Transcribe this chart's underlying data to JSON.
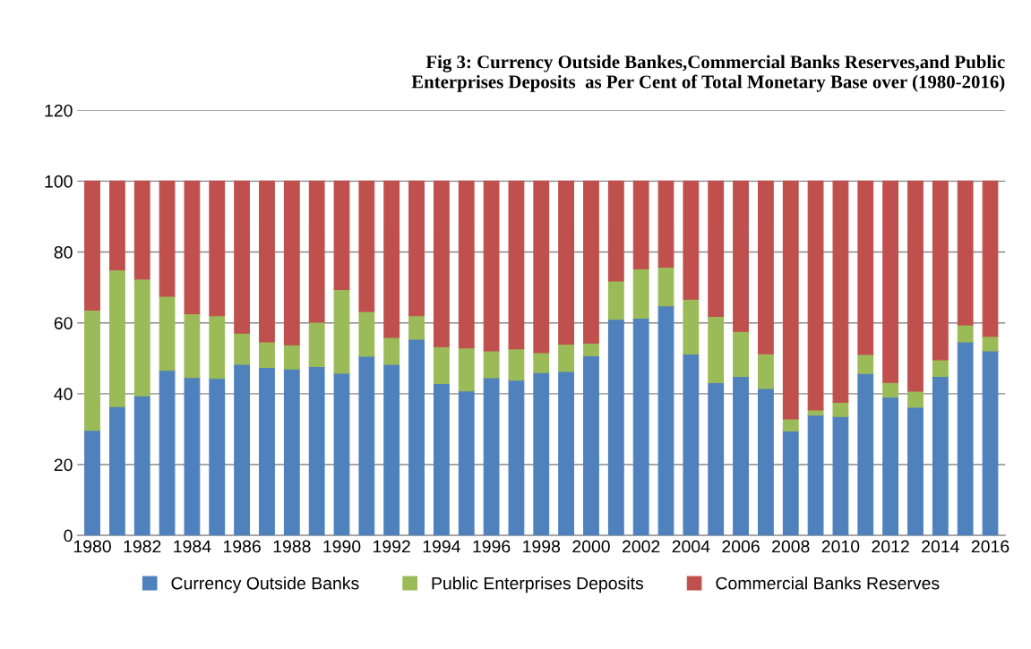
{
  "chart_data": {
    "type": "bar",
    "stacked": true,
    "title": "Fig 3: Currency Outside Bankes,Commercial Banks Reserves,and Public\nEnterprises Deposits  as Per Cent of Total Monetary Base over (1980-2016)",
    "categories": [
      "1980",
      null,
      "1982",
      null,
      "1984",
      null,
      "1986",
      null,
      "1988",
      null,
      "1990",
      null,
      "1992",
      null,
      "1994",
      null,
      "1996",
      null,
      "1998",
      null,
      "2000",
      null,
      "2002",
      null,
      "2004",
      null,
      "2006",
      null,
      "2008",
      null,
      "2010",
      null,
      "2012",
      null,
      "2014",
      null,
      "2016"
    ],
    "series": [
      {
        "name": "Currency Outside Banks",
        "color": "#4f81bd",
        "values": [
          29.7,
          36.4,
          39.4,
          46.6,
          44.6,
          44.3,
          48.3,
          47.4,
          47.0,
          47.7,
          45.8,
          50.6,
          48.3,
          55.4,
          42.9,
          40.8,
          44.5,
          43.8,
          46.0,
          46.3,
          50.7,
          61.0,
          61.3,
          64.8,
          51.2,
          43.1,
          44.9,
          41.5,
          29.5,
          34.0,
          33.6,
          45.7,
          39.0,
          36.2,
          44.9,
          54.6,
          52.1
        ]
      },
      {
        "name": "Public Enterprises Deposits",
        "color": "#9bbb59",
        "values": [
          33.9,
          38.6,
          33.0,
          20.9,
          18.0,
          17.7,
          8.8,
          7.2,
          6.8,
          12.5,
          23.6,
          12.6,
          7.6,
          6.6,
          10.4,
          12.1,
          7.6,
          8.9,
          5.6,
          7.7,
          3.6,
          10.8,
          14.0,
          10.9,
          15.5,
          18.7,
          12.7,
          9.8,
          3.4,
          1.4,
          4.0,
          5.4,
          4.2,
          4.5,
          4.7,
          4.8,
          4.1
        ]
      },
      {
        "name": "Commercial Banks Reserves",
        "color": "#c0504d",
        "values": [
          36.4,
          25.0,
          27.6,
          32.5,
          37.4,
          38.0,
          42.9,
          45.4,
          46.2,
          39.8,
          30.6,
          36.8,
          44.1,
          38.0,
          46.7,
          47.1,
          47.9,
          47.3,
          48.4,
          46.0,
          45.7,
          28.2,
          24.7,
          24.3,
          33.3,
          38.2,
          42.4,
          48.7,
          67.1,
          64.6,
          62.4,
          48.9,
          56.8,
          59.3,
          50.4,
          40.6,
          43.8
        ]
      }
    ],
    "ylim": [
      0,
      120
    ],
    "yticks": [
      0,
      20,
      40,
      60,
      80,
      100,
      120
    ],
    "grid": "y",
    "legend": "bottom"
  }
}
